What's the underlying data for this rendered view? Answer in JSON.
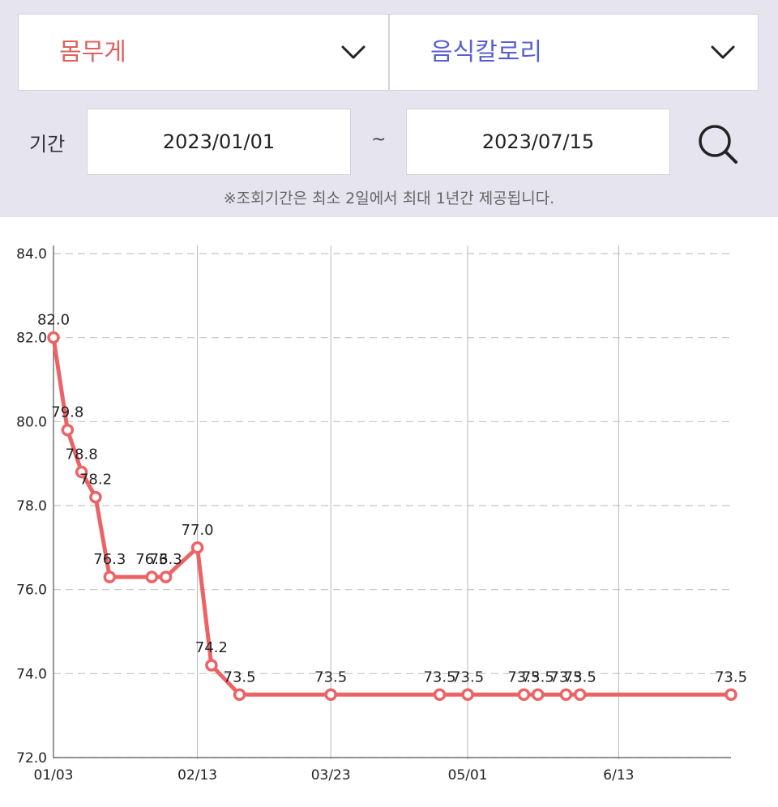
{
  "filters": {
    "metric_left": "몸무게",
    "metric_right": "음식칼로리",
    "period_label": "기간",
    "start_date": "2023/01/01",
    "separator": "~",
    "end_date": "2023/07/15",
    "notice": "※조회기간은 최소 2일에서 최대 1년간 제공됩니다."
  },
  "icons": {
    "dropdown": "chevron-down-icon",
    "search": "search-icon"
  },
  "colors": {
    "line": "#ec6366",
    "left_label": "#e06060",
    "right_label": "#5a5fd0",
    "panel_bg": "#e6e4ef"
  },
  "chart_data": {
    "type": "line",
    "ylim": [
      72.0,
      84.0
    ],
    "yticks": [
      "72.0",
      "74.0",
      "76.0",
      "78.0",
      "80.0",
      "82.0",
      "84.0"
    ],
    "xlim": [
      "2023-01-03",
      "2023-07-15"
    ],
    "xticks": [
      {
        "date": "2023-01-03",
        "label": "01/03"
      },
      {
        "date": "2023-02-13",
        "label": "02/13"
      },
      {
        "date": "2023-03-23",
        "label": "03/23"
      },
      {
        "date": "2023-05-01",
        "label": "05/01"
      },
      {
        "date": "2023-06-13",
        "label": "6/13"
      }
    ],
    "grid": true,
    "series": [
      {
        "points": [
          {
            "x": "2023-01-03",
            "y": 82.0,
            "label": "82.0"
          },
          {
            "x": "2023-01-07",
            "y": 79.8,
            "label": "79.8"
          },
          {
            "x": "2023-01-11",
            "y": 78.8,
            "label": "78.8"
          },
          {
            "x": "2023-01-15",
            "y": 78.2,
            "label": "78.2"
          },
          {
            "x": "2023-01-19",
            "y": 76.3,
            "label": "76.3"
          },
          {
            "x": "2023-01-31",
            "y": 76.3,
            "label": "76.3"
          },
          {
            "x": "2023-02-04",
            "y": 76.3,
            "label": "76.3"
          },
          {
            "x": "2023-02-13",
            "y": 77.0,
            "label": "77.0"
          },
          {
            "x": "2023-02-17",
            "y": 74.2,
            "label": "74.2"
          },
          {
            "x": "2023-02-25",
            "y": 73.5,
            "label": "73.5"
          },
          {
            "x": "2023-03-23",
            "y": 73.5,
            "label": "73.5"
          },
          {
            "x": "2023-04-23",
            "y": 73.5,
            "label": "73.5"
          },
          {
            "x": "2023-05-01",
            "y": 73.5,
            "label": "73.5"
          },
          {
            "x": "2023-05-17",
            "y": 73.5,
            "label": "73.5"
          },
          {
            "x": "2023-05-21",
            "y": 73.5,
            "label": "73.5"
          },
          {
            "x": "2023-05-29",
            "y": 73.5,
            "label": "73.5"
          },
          {
            "x": "2023-06-02",
            "y": 73.5,
            "label": "73.5"
          },
          {
            "x": "2023-07-15",
            "y": 73.5,
            "label": "73.5"
          }
        ]
      }
    ]
  }
}
